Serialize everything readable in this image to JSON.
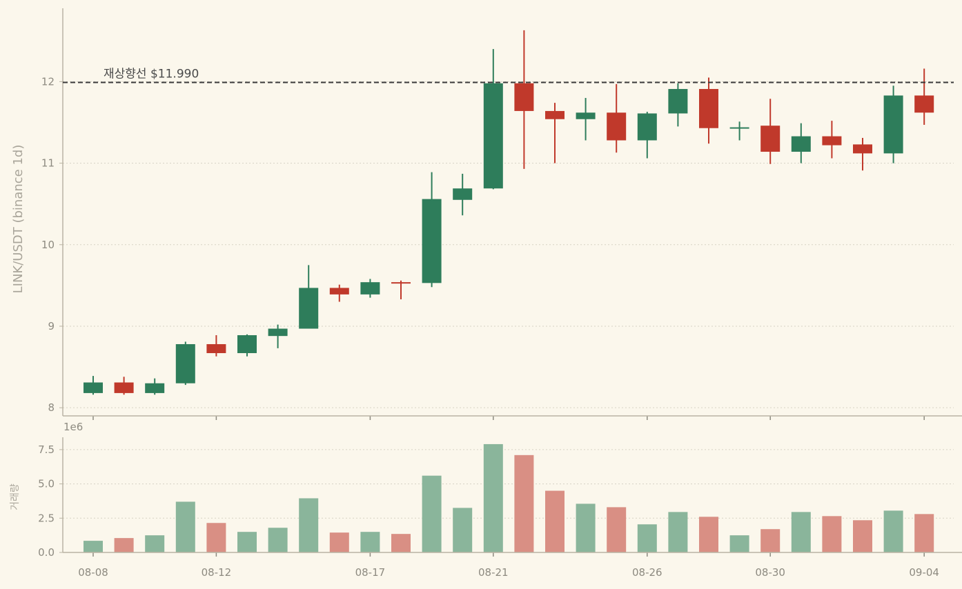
{
  "chart_data": [
    {
      "type": "candlestick",
      "ylabel": "LINK/USDT (binance 1d)",
      "ylim": [
        7.9,
        12.9
      ],
      "yticks": [
        8,
        9,
        10,
        11,
        12
      ],
      "grid": true,
      "x": [
        "08-08",
        "08-09",
        "08-10",
        "08-11",
        "08-12",
        "08-13",
        "08-14",
        "08-15",
        "08-16",
        "08-17",
        "08-18",
        "08-19",
        "08-20",
        "08-21",
        "08-22",
        "08-23",
        "08-24",
        "08-25",
        "08-26",
        "08-27",
        "08-28",
        "08-29",
        "08-30",
        "08-31",
        "09-01",
        "09-02",
        "09-03",
        "09-04"
      ],
      "xtick_labels": [
        "08-08",
        "08-12",
        "08-17",
        "08-21",
        "08-26",
        "08-30",
        "09-04"
      ],
      "open": [
        8.18,
        8.31,
        8.18,
        8.3,
        8.78,
        8.67,
        8.88,
        8.97,
        9.47,
        9.39,
        9.54,
        9.53,
        10.55,
        10.69,
        11.98,
        11.64,
        11.54,
        11.62,
        11.28,
        11.61,
        11.91,
        11.43,
        11.46,
        11.14,
        11.33,
        11.23,
        11.12,
        11.83
      ],
      "high": [
        8.39,
        8.38,
        8.36,
        8.81,
        8.89,
        8.9,
        9.02,
        9.75,
        9.51,
        9.58,
        9.56,
        10.89,
        10.87,
        12.4,
        12.63,
        11.74,
        11.8,
        11.97,
        11.63,
        11.98,
        12.05,
        11.51,
        11.79,
        11.49,
        11.52,
        11.31,
        11.95,
        12.16
      ],
      "low": [
        8.16,
        8.16,
        8.16,
        8.28,
        8.63,
        8.63,
        8.73,
        8.97,
        9.3,
        9.35,
        9.33,
        9.48,
        10.36,
        10.68,
        10.93,
        11.0,
        11.28,
        11.13,
        11.06,
        11.45,
        11.24,
        11.28,
        10.99,
        11.0,
        11.06,
        10.91,
        11.0,
        11.47
      ],
      "close": [
        8.31,
        8.18,
        8.3,
        8.78,
        8.67,
        8.89,
        8.97,
        9.47,
        9.39,
        9.54,
        9.53,
        10.56,
        10.69,
        11.98,
        11.64,
        11.54,
        11.62,
        11.28,
        11.61,
        11.91,
        11.43,
        11.44,
        11.14,
        11.33,
        11.22,
        11.12,
        11.83,
        11.62
      ],
      "up_color": "#2e7d5b",
      "down_color": "#c0392b",
      "annotation": {
        "text": "재상향선 $11.990",
        "value": 11.99,
        "line_color": "#3a3a3a"
      }
    },
    {
      "type": "bar",
      "ylabel": "거래량",
      "scale_label": "1e6",
      "ylim": [
        0,
        8.4
      ],
      "yticks": [
        0.0,
        2.5,
        5.0,
        7.5
      ],
      "ytick_labels": [
        "0.0",
        "2.5",
        "5.0",
        "7.5"
      ],
      "grid": true,
      "x": [
        "08-08",
        "08-09",
        "08-10",
        "08-11",
        "08-12",
        "08-13",
        "08-14",
        "08-15",
        "08-16",
        "08-17",
        "08-18",
        "08-19",
        "08-20",
        "08-21",
        "08-22",
        "08-23",
        "08-24",
        "08-25",
        "08-26",
        "08-27",
        "08-28",
        "08-29",
        "08-30",
        "08-31",
        "09-01",
        "09-02",
        "09-03",
        "09-04"
      ],
      "values": [
        0.85,
        1.05,
        1.25,
        3.7,
        2.15,
        1.5,
        1.8,
        3.95,
        1.45,
        1.5,
        1.35,
        5.6,
        3.25,
        7.9,
        7.1,
        4.5,
        3.55,
        3.3,
        2.05,
        2.95,
        2.6,
        1.25,
        1.7,
        2.95,
        2.65,
        2.35,
        3.05,
        2.8
      ],
      "colors_by_direction": [
        "up",
        "down",
        "up",
        "up",
        "down",
        "up",
        "up",
        "up",
        "down",
        "up",
        "down",
        "up",
        "up",
        "up",
        "down",
        "down",
        "up",
        "down",
        "up",
        "up",
        "down",
        "up",
        "down",
        "up",
        "down",
        "down",
        "up",
        "down"
      ],
      "up_color": "#8ab59b",
      "down_color": "#d98f84"
    }
  ]
}
